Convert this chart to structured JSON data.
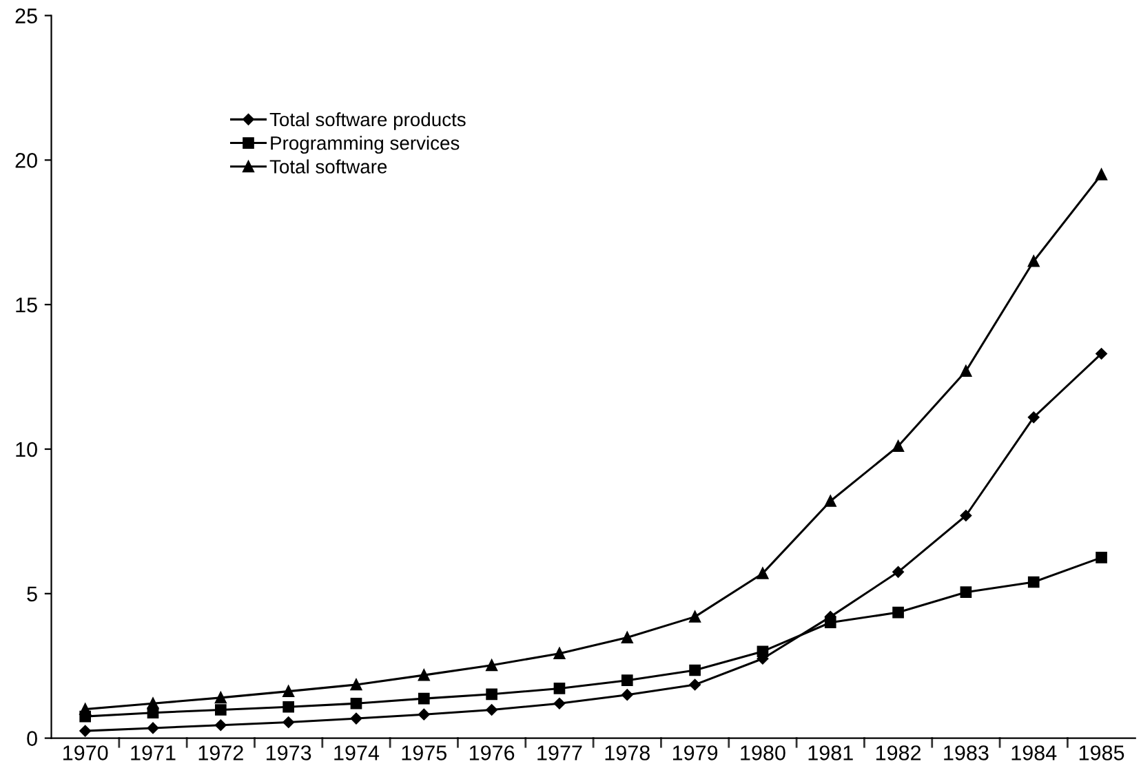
{
  "chart_data": {
    "type": "line",
    "categories": [
      "1970",
      "1971",
      "1972",
      "1973",
      "1974",
      "1975",
      "1976",
      "1977",
      "1978",
      "1979",
      "1980",
      "1981",
      "1982",
      "1983",
      "1984",
      "1985"
    ],
    "series": [
      {
        "name": "Total software products",
        "color": "#000000",
        "marker": "diamond",
        "values": [
          0.25,
          0.35,
          0.45,
          0.55,
          0.68,
          0.82,
          0.98,
          1.2,
          1.5,
          1.85,
          2.75,
          4.2,
          5.75,
          7.7,
          11.1,
          13.3
        ]
      },
      {
        "name": "Programming services",
        "color": "#000000",
        "marker": "square",
        "values": [
          0.75,
          0.88,
          0.98,
          1.08,
          1.2,
          1.37,
          1.52,
          1.72,
          2.0,
          2.35,
          3.0,
          4.0,
          4.35,
          5.05,
          5.4,
          6.25
        ]
      },
      {
        "name": "Total software",
        "color": "#000000",
        "marker": "triangle",
        "values": [
          1.0,
          1.2,
          1.4,
          1.62,
          1.85,
          2.18,
          2.52,
          2.93,
          3.48,
          4.2,
          5.7,
          8.2,
          10.1,
          12.7,
          16.5,
          19.5
        ]
      }
    ],
    "ylim": [
      0,
      25
    ],
    "yticks": [
      0,
      5,
      10,
      15,
      20,
      25
    ],
    "grid": false,
    "legend": "top left",
    "line_style": "solid"
  }
}
